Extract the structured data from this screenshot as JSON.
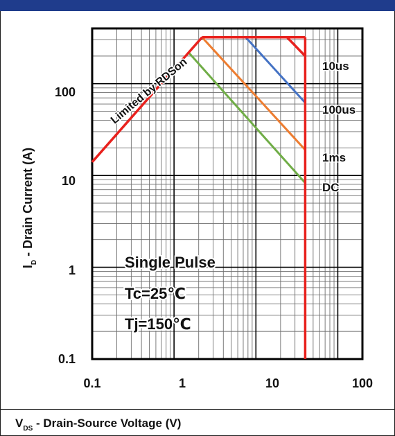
{
  "header": {
    "bar_color": "#1f3c8c"
  },
  "chart_data": {
    "type": "line",
    "x_scale": "log",
    "y_scale": "log",
    "xlim": [
      0.1,
      200
    ],
    "ylim": [
      0.1,
      400
    ],
    "grid": true,
    "x_ticks": [
      "0.1",
      "1",
      "10",
      "100"
    ],
    "y_ticks": [
      "0.1",
      "1",
      "10",
      "100"
    ],
    "ylabel_main": "I",
    "ylabel_sub": "D",
    "ylabel_rest": " - Drain Current  (A)",
    "xlabel_main": "V",
    "xlabel_sub": "DS",
    "xlabel_rest": " - Drain-Source Voltage (V)",
    "annotations": {
      "rdson": "Limited by RDSon",
      "line1": "Single Pulse",
      "line2": "Tc=25℃",
      "line3": "Tj=150℃"
    },
    "series": [
      {
        "name": "10us",
        "color": "#e8211d",
        "x": [
          2.2,
          24.0,
          40.0
        ],
        "y": [
          320,
          320,
          200
        ]
      },
      {
        "name": "100us",
        "color": "#4472c4",
        "x": [
          7.5,
          40.0
        ],
        "y": [
          320,
          62
        ]
      },
      {
        "name": "1ms",
        "color": "#ed7d31",
        "x": [
          2.2,
          40.0
        ],
        "y": [
          320,
          19
        ]
      },
      {
        "name": "DC",
        "color": "#70ad47",
        "x": [
          1.5,
          40.0
        ],
        "y": [
          220,
          8.3
        ]
      }
    ],
    "limit_lines": [
      {
        "name": "RDSon limit",
        "color": "#e8211d",
        "x": [
          0.1,
          2.2
        ],
        "y": [
          14,
          320
        ]
      },
      {
        "name": "10us top",
        "color": "#e8211d",
        "x": [
          2.2,
          40.0
        ],
        "y": [
          320,
          320
        ]
      },
      {
        "name": "BVDSS",
        "color": "#e8211d",
        "x": [
          40.0,
          40.0
        ],
        "y": [
          0.1,
          320
        ]
      }
    ]
  }
}
